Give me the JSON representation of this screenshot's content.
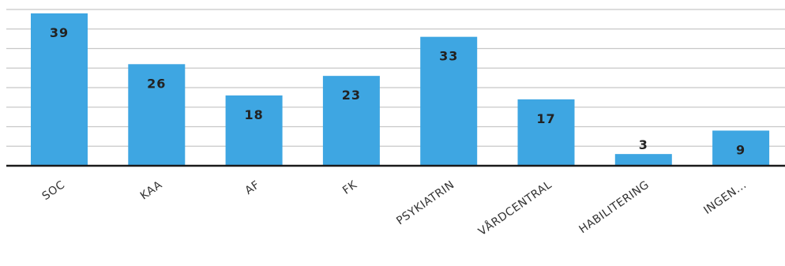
{
  "chart_data": {
    "type": "bar",
    "categories": [
      "SOC",
      "KAA",
      "AF",
      "FK",
      "PSYKIATRIN",
      "VÅRDCENTRAL",
      "HABILITERING",
      "INGEN..."
    ],
    "values": [
      39,
      26,
      18,
      23,
      33,
      17,
      3,
      9
    ],
    "title": "",
    "xlabel": "",
    "ylabel": "",
    "ylim": [
      0,
      40
    ],
    "grid": true,
    "legend": "none",
    "bar_color": "#3ea6e2",
    "data_labels": true
  }
}
